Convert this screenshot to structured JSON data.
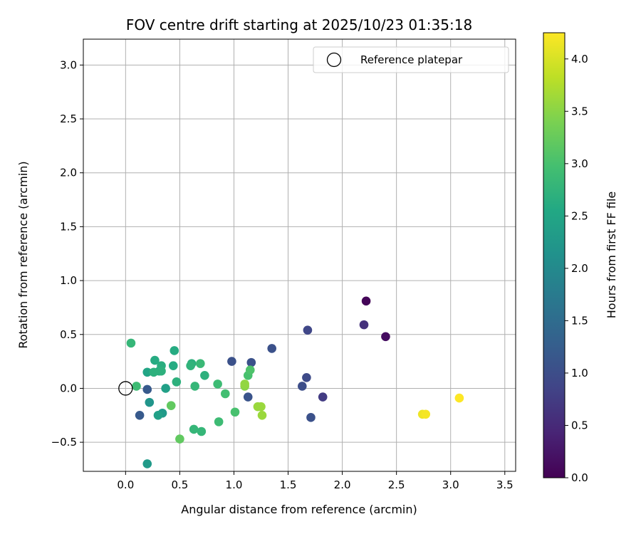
{
  "chart_data": {
    "type": "scatter",
    "title": "FOV centre drift starting at 2025/10/23 01:35:18",
    "xlabel": "Angular distance from reference (arcmin)",
    "ylabel": "Rotation from reference (arcmin)",
    "xlim": [
      -0.39,
      3.6
    ],
    "ylim": [
      -0.77,
      3.24
    ],
    "xticks": [
      0.0,
      0.5,
      1.0,
      1.5,
      2.0,
      2.5,
      3.0,
      3.5
    ],
    "xtick_labels": [
      "0.0",
      "0.5",
      "1.0",
      "1.5",
      "2.0",
      "2.5",
      "3.0",
      "3.5"
    ],
    "yticks": [
      -0.5,
      0.0,
      0.5,
      1.0,
      1.5,
      2.0,
      2.5,
      3.0
    ],
    "ytick_labels": [
      "−0.5",
      "0.0",
      "0.5",
      "1.0",
      "1.5",
      "2.0",
      "2.5",
      "3.0"
    ],
    "grid": true,
    "legend": {
      "position": "top-right",
      "entries": [
        {
          "label": "Reference platepar",
          "marker": "open-circle"
        }
      ]
    },
    "reference_point": {
      "x": 0.0,
      "y": 0.0
    },
    "colorbar": {
      "label": "Hours from first FF file",
      "colormap": "viridis",
      "range": [
        0.0,
        4.25
      ],
      "ticks": [
        0.0,
        0.5,
        1.0,
        1.5,
        2.0,
        2.5,
        3.0,
        3.5,
        4.0
      ],
      "tick_labels": [
        "0.0",
        "0.5",
        "1.0",
        "1.5",
        "2.0",
        "2.5",
        "3.0",
        "3.5",
        "4.0"
      ]
    },
    "points": [
      {
        "x": 2.22,
        "y": 0.81,
        "t": 0.05
      },
      {
        "x": 2.4,
        "y": 0.48,
        "t": 0.15
      },
      {
        "x": 2.2,
        "y": 0.59,
        "t": 0.6
      },
      {
        "x": 1.68,
        "y": 0.54,
        "t": 0.9
      },
      {
        "x": 1.82,
        "y": -0.08,
        "t": 0.75
      },
      {
        "x": 1.67,
        "y": 0.1,
        "t": 0.95
      },
      {
        "x": 1.63,
        "y": 0.02,
        "t": 1.0
      },
      {
        "x": 1.71,
        "y": -0.27,
        "t": 1.05
      },
      {
        "x": 1.35,
        "y": 0.37,
        "t": 1.05
      },
      {
        "x": 1.16,
        "y": 0.24,
        "t": 1.05
      },
      {
        "x": 0.98,
        "y": 0.25,
        "t": 1.05
      },
      {
        "x": 1.13,
        "y": -0.08,
        "t": 1.1
      },
      {
        "x": 0.13,
        "y": -0.25,
        "t": 1.2
      },
      {
        "x": 0.2,
        "y": -0.01,
        "t": 1.2
      },
      {
        "x": 0.22,
        "y": -0.13,
        "t": 2.2
      },
      {
        "x": 0.2,
        "y": -0.7,
        "t": 2.3
      },
      {
        "x": 0.34,
        "y": -0.23,
        "t": 2.3
      },
      {
        "x": 0.3,
        "y": -0.25,
        "t": 2.4
      },
      {
        "x": 0.37,
        "y": 0.0,
        "t": 2.4
      },
      {
        "x": 0.2,
        "y": 0.15,
        "t": 2.5
      },
      {
        "x": 0.27,
        "y": 0.26,
        "t": 2.6
      },
      {
        "x": 0.31,
        "y": 0.16,
        "t": 2.6
      },
      {
        "x": 0.33,
        "y": 0.21,
        "t": 2.65
      },
      {
        "x": 0.33,
        "y": 0.16,
        "t": 2.7
      },
      {
        "x": 0.26,
        "y": 0.15,
        "t": 2.7
      },
      {
        "x": 0.44,
        "y": 0.21,
        "t": 2.6
      },
      {
        "x": 0.45,
        "y": 0.35,
        "t": 2.6
      },
      {
        "x": 0.47,
        "y": 0.06,
        "t": 2.7
      },
      {
        "x": 0.61,
        "y": 0.23,
        "t": 2.7
      },
      {
        "x": 0.6,
        "y": 0.21,
        "t": 2.75
      },
      {
        "x": 0.73,
        "y": 0.12,
        "t": 2.7
      },
      {
        "x": 0.64,
        "y": 0.02,
        "t": 2.8
      },
      {
        "x": 0.69,
        "y": 0.23,
        "t": 2.85
      },
      {
        "x": 0.63,
        "y": -0.38,
        "t": 2.8
      },
      {
        "x": 0.7,
        "y": -0.4,
        "t": 2.8
      },
      {
        "x": 0.85,
        "y": 0.04,
        "t": 2.9
      },
      {
        "x": 0.86,
        "y": -0.31,
        "t": 2.9
      },
      {
        "x": 0.92,
        "y": -0.05,
        "t": 2.95
      },
      {
        "x": 1.01,
        "y": -0.22,
        "t": 3.0
      },
      {
        "x": 0.05,
        "y": 0.42,
        "t": 2.8
      },
      {
        "x": 0.1,
        "y": 0.02,
        "t": 2.9
      },
      {
        "x": 1.13,
        "y": 0.12,
        "t": 3.0
      },
      {
        "x": 1.15,
        "y": 0.17,
        "t": 3.05
      },
      {
        "x": 0.42,
        "y": -0.16,
        "t": 3.2
      },
      {
        "x": 0.5,
        "y": -0.47,
        "t": 3.2
      },
      {
        "x": 1.1,
        "y": 0.02,
        "t": 3.5
      },
      {
        "x": 1.1,
        "y": 0.04,
        "t": 3.55
      },
      {
        "x": 1.22,
        "y": -0.17,
        "t": 3.6
      },
      {
        "x": 1.25,
        "y": -0.17,
        "t": 3.6
      },
      {
        "x": 1.26,
        "y": -0.25,
        "t": 3.6
      },
      {
        "x": 2.74,
        "y": -0.24,
        "t": 4.15
      },
      {
        "x": 2.77,
        "y": -0.24,
        "t": 4.2
      },
      {
        "x": 3.08,
        "y": -0.09,
        "t": 4.25
      }
    ]
  }
}
